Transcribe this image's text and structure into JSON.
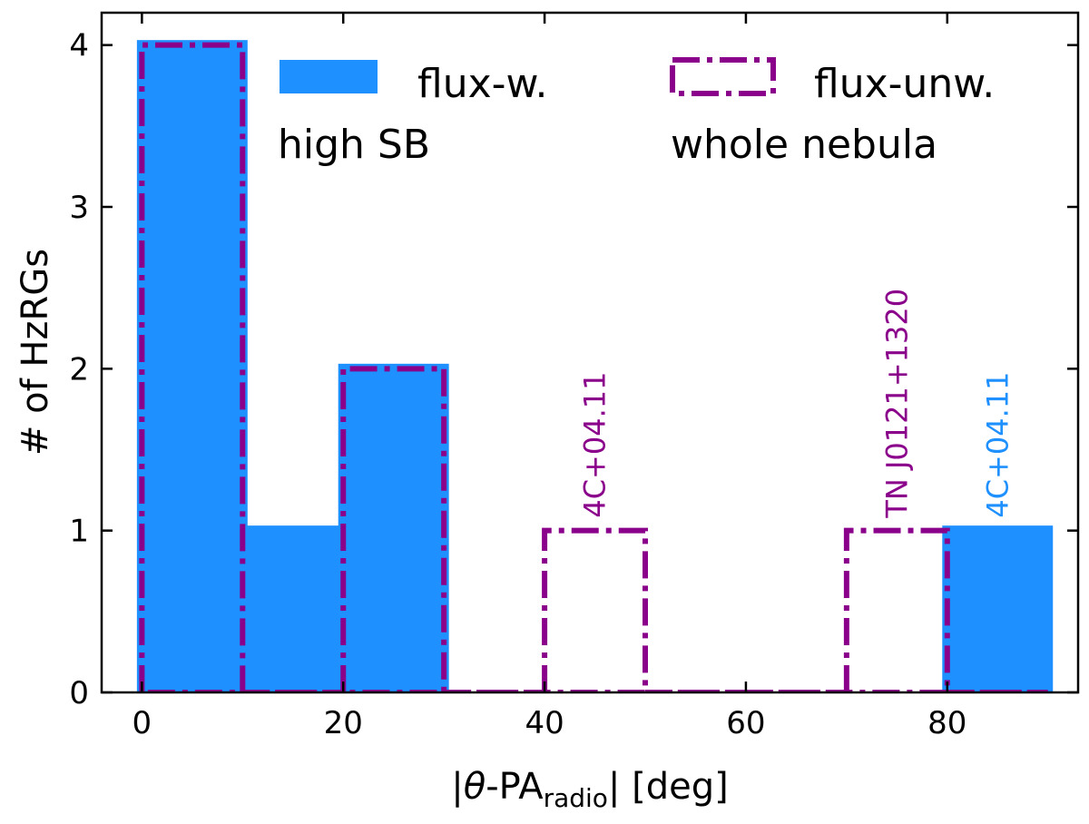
{
  "chart_data": {
    "type": "bar",
    "title": "",
    "xlabel_parts": {
      "prefix": "|",
      "theta": "θ",
      "dash": "-PA",
      "subscript": "radio",
      "suffix": "| [deg]"
    },
    "ylabel": "# of HzRGs",
    "xlim": [
      -4,
      93
    ],
    "ylim": [
      0,
      4.2
    ],
    "xticks": [
      0,
      20,
      40,
      60,
      80
    ],
    "yticks": [
      0,
      1,
      2,
      3,
      4
    ],
    "bin_edges": [
      0,
      10,
      20,
      30,
      40,
      50,
      60,
      70,
      80,
      90
    ],
    "series": [
      {
        "name": "flux-w. high SB",
        "legend_line1": "flux-w.",
        "legend_line2": "high SB",
        "style": "filled",
        "color": "#1e90ff",
        "values": [
          4,
          1,
          2,
          0,
          0,
          0,
          0,
          0,
          1
        ]
      },
      {
        "name": "flux-unw. whole nebula",
        "legend_line1": "flux-unw.",
        "legend_line2": "whole nebula",
        "style": "dashdot-step",
        "color": "#8b008b",
        "values": [
          4,
          0,
          2,
          0,
          1,
          0,
          0,
          1,
          0
        ]
      }
    ],
    "annotations": [
      {
        "text": "4C+04.11",
        "x": 45,
        "y": 1,
        "color": "#8b008b"
      },
      {
        "text": "TN J0121+1320",
        "x": 75,
        "y": 1,
        "color": "#8b008b"
      },
      {
        "text": "4C+04.11",
        "x": 85,
        "y": 1,
        "color": "#1e90ff"
      }
    ]
  }
}
